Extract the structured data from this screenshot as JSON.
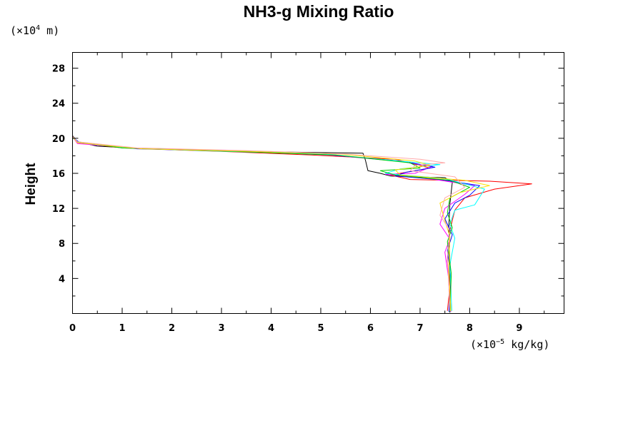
{
  "chart_data": {
    "type": "line",
    "title": "NH3-g Mixing Ratio",
    "ylabel": "Height",
    "y_unit": {
      "prefix": "(×10",
      "exp": "4",
      "suffix": " m)"
    },
    "x_unit": {
      "prefix": "(×10",
      "exp": "−5",
      "suffix": " kg/kg)"
    },
    "xlim": [
      0,
      9.9
    ],
    "ylim": [
      0,
      29.8
    ],
    "x_ticks": [
      "0",
      "1",
      "2",
      "3",
      "4",
      "5",
      "6",
      "7",
      "8",
      "9"
    ],
    "x_tick_values": [
      0,
      1,
      2,
      3,
      4,
      5,
      6,
      7,
      8,
      9
    ],
    "y_ticks": [
      "4",
      "8",
      "12",
      "16",
      "20",
      "24",
      "28"
    ],
    "y_tick_values": [
      4,
      8,
      12,
      16,
      20,
      24,
      28
    ],
    "series": [
      {
        "name": "black",
        "color": "#000000",
        "points": [
          [
            0,
            29.8
          ],
          [
            0,
            20.3
          ],
          [
            0.1,
            19.6
          ],
          [
            0.5,
            19.1
          ],
          [
            1.5,
            18.8
          ],
          [
            3.5,
            18.5
          ],
          [
            5.85,
            18.3
          ],
          [
            5.9,
            17.5
          ],
          [
            5.95,
            16.3
          ],
          [
            6.2,
            16.0
          ],
          [
            6.4,
            15.7
          ],
          [
            7.5,
            15.5
          ],
          [
            7.65,
            15.0
          ],
          [
            7.6,
            12.5
          ],
          [
            7.58,
            10.0
          ],
          [
            7.6,
            5.0
          ],
          [
            7.6,
            0.1
          ]
        ]
      },
      {
        "name": "red",
        "color": "#ff0000",
        "points": [
          [
            0,
            29.8
          ],
          [
            0,
            20.2
          ],
          [
            0.1,
            19.5
          ],
          [
            1.0,
            18.9
          ],
          [
            3.0,
            18.5
          ],
          [
            4.8,
            18.1
          ],
          [
            6.5,
            17.6
          ],
          [
            7.2,
            16.6
          ],
          [
            6.4,
            15.8
          ],
          [
            6.8,
            15.3
          ],
          [
            8.4,
            15.1
          ],
          [
            9.25,
            14.8
          ],
          [
            8.5,
            14.2
          ],
          [
            7.9,
            13.2
          ],
          [
            7.7,
            11.8
          ],
          [
            7.6,
            9.5
          ],
          [
            7.55,
            6.0
          ],
          [
            7.6,
            3.0
          ],
          [
            7.55,
            0.3
          ]
        ]
      },
      {
        "name": "magenta",
        "color": "#ff00ff",
        "points": [
          [
            0,
            29.8
          ],
          [
            0,
            20.2
          ],
          [
            0.1,
            19.4
          ],
          [
            1.2,
            18.9
          ],
          [
            3.2,
            18.6
          ],
          [
            5.0,
            18.2
          ],
          [
            6.7,
            17.3
          ],
          [
            7.25,
            16.8
          ],
          [
            6.9,
            16.0
          ],
          [
            6.3,
            15.9
          ],
          [
            7.3,
            15.3
          ],
          [
            8.1,
            14.6
          ],
          [
            7.9,
            13.6
          ],
          [
            7.5,
            12.0
          ],
          [
            7.4,
            10.2
          ],
          [
            7.6,
            8.5
          ],
          [
            7.5,
            7.0
          ],
          [
            7.6,
            3.0
          ],
          [
            7.62,
            0.2
          ]
        ]
      },
      {
        "name": "blue",
        "color": "#0000ff",
        "points": [
          [
            0,
            29.8
          ],
          [
            0,
            20.1
          ],
          [
            0.15,
            19.5
          ],
          [
            1.3,
            18.8
          ],
          [
            3.4,
            18.5
          ],
          [
            5.2,
            18.1
          ],
          [
            6.6,
            17.4
          ],
          [
            7.3,
            16.7
          ],
          [
            6.7,
            16.1
          ],
          [
            6.5,
            15.7
          ],
          [
            7.4,
            15.3
          ],
          [
            8.2,
            14.6
          ],
          [
            8.0,
            13.5
          ],
          [
            7.7,
            12.6
          ],
          [
            7.5,
            10.8
          ],
          [
            7.65,
            9.0
          ],
          [
            7.55,
            7.2
          ],
          [
            7.62,
            4.0
          ],
          [
            7.58,
            0.2
          ]
        ]
      },
      {
        "name": "cyan",
        "color": "#00ffff",
        "points": [
          [
            0,
            29.8
          ],
          [
            0,
            20.1
          ],
          [
            0.12,
            19.5
          ],
          [
            1.1,
            18.9
          ],
          [
            3.1,
            18.5
          ],
          [
            5.1,
            18.2
          ],
          [
            6.4,
            17.5
          ],
          [
            7.4,
            17.0
          ],
          [
            6.6,
            16.5
          ],
          [
            6.3,
            16.0
          ],
          [
            7.5,
            15.4
          ],
          [
            8.3,
            14.2
          ],
          [
            8.1,
            12.4
          ],
          [
            7.7,
            11.8
          ],
          [
            7.6,
            10.2
          ],
          [
            7.7,
            8.6
          ],
          [
            7.6,
            5.5
          ],
          [
            7.64,
            0.3
          ]
        ]
      },
      {
        "name": "green",
        "color": "#00cc00",
        "points": [
          [
            0,
            29.8
          ],
          [
            0,
            20.1
          ],
          [
            0.1,
            19.6
          ],
          [
            1.0,
            18.9
          ],
          [
            3.3,
            18.5
          ],
          [
            5.3,
            18.1
          ],
          [
            6.8,
            17.2
          ],
          [
            7.0,
            16.6
          ],
          [
            6.2,
            16.3
          ],
          [
            6.5,
            15.8
          ],
          [
            7.6,
            15.2
          ],
          [
            8.0,
            14.4
          ],
          [
            7.6,
            13.2
          ],
          [
            7.55,
            11.5
          ],
          [
            7.65,
            9.8
          ],
          [
            7.55,
            8.2
          ],
          [
            7.63,
            4.5
          ],
          [
            7.6,
            0.2
          ]
        ]
      },
      {
        "name": "yellow",
        "color": "#ffdd00",
        "points": [
          [
            0,
            29.8
          ],
          [
            0,
            20.2
          ],
          [
            0.1,
            19.5
          ],
          [
            1.4,
            18.8
          ],
          [
            3.6,
            18.5
          ],
          [
            5.4,
            18.2
          ],
          [
            6.9,
            17.4
          ],
          [
            7.2,
            16.9
          ],
          [
            6.5,
            16.4
          ],
          [
            6.6,
            15.8
          ],
          [
            7.9,
            15.2
          ],
          [
            8.4,
            14.6
          ],
          [
            7.8,
            13.8
          ],
          [
            7.4,
            12.6
          ],
          [
            7.5,
            10.6
          ],
          [
            7.6,
            8.8
          ],
          [
            7.58,
            5.0
          ],
          [
            7.62,
            0.3
          ]
        ]
      },
      {
        "name": "pink",
        "color": "#ffaaaa",
        "points": [
          [
            0,
            29.8
          ],
          [
            0,
            20.2
          ],
          [
            0.1,
            19.6
          ],
          [
            1.3,
            18.9
          ],
          [
            3.5,
            18.6
          ],
          [
            5.5,
            18.2
          ],
          [
            7.0,
            17.6
          ],
          [
            7.5,
            17.2
          ],
          [
            6.9,
            16.9
          ],
          [
            6.8,
            16.3
          ],
          [
            7.7,
            15.6
          ],
          [
            7.9,
            14.4
          ],
          [
            7.5,
            13.2
          ],
          [
            7.4,
            11.2
          ],
          [
            7.6,
            9.5
          ],
          [
            7.55,
            6.5
          ],
          [
            7.6,
            0.3
          ]
        ]
      }
    ]
  }
}
